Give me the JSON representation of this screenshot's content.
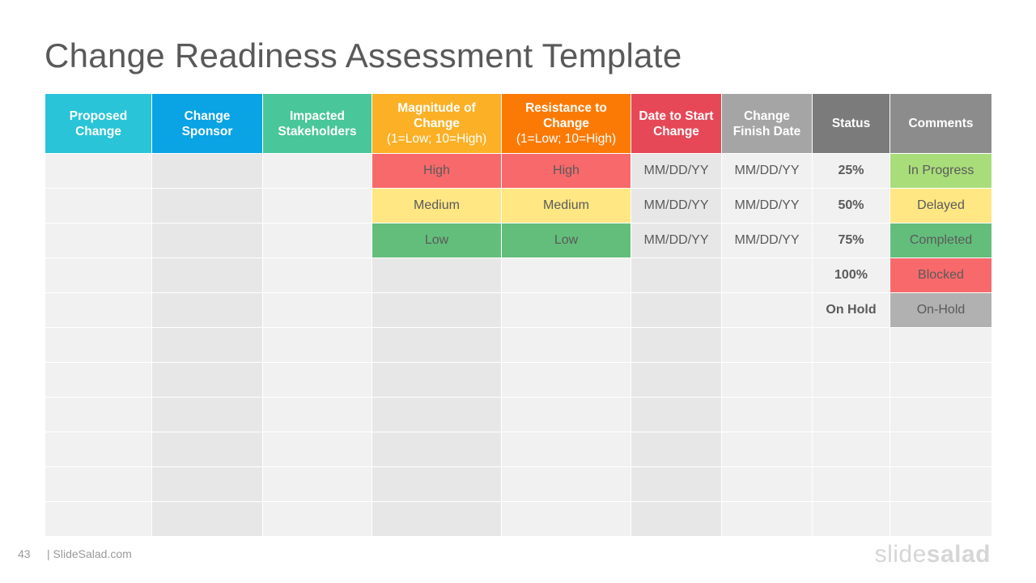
{
  "slide": {
    "title": "Change Readiness Assessment Template",
    "page_number": "43",
    "site": "| SlideSalad.com",
    "logo": {
      "part1": "slide",
      "part2": "salad"
    }
  },
  "colors": {
    "header": [
      "#29c4d8",
      "#0aa3e4",
      "#49c69a",
      "#fbb025",
      "#fb7a06",
      "#e64857",
      "#a5a5a5",
      "#7b7b7b",
      "#8c8c8c"
    ],
    "high": "#f8696b",
    "medium": "#ffe784",
    "low": "#63be7b",
    "in_progress": "#a9dd7a",
    "delayed": "#ffe784",
    "completed": "#63be7b",
    "blocked": "#f8696b",
    "on_hold": "#b1b1b1"
  },
  "headers": [
    [
      "Proposed",
      "Change"
    ],
    [
      "Change",
      "Sponsor"
    ],
    [
      "Impacted",
      "Stakeholders"
    ],
    [
      "Magnitude of",
      "Change",
      "(1=Low; 10=High)"
    ],
    [
      "Resistance to",
      "Change",
      "(1=Low; 10=High)"
    ],
    [
      "Date to Start",
      "Change"
    ],
    [
      "Change",
      "Finish Date"
    ],
    [
      "Status"
    ],
    [
      "Comments"
    ]
  ],
  "rows": [
    {
      "magnitude": "High",
      "resistance": "High",
      "start": "MM/DD/YY",
      "finish": "MM/DD/YY",
      "status": "25%",
      "comment": "In Progress"
    },
    {
      "magnitude": "Medium",
      "resistance": "Medium",
      "start": "MM/DD/YY",
      "finish": "MM/DD/YY",
      "status": "50%",
      "comment": "Delayed"
    },
    {
      "magnitude": "Low",
      "resistance": "Low",
      "start": "MM/DD/YY",
      "finish": "MM/DD/YY",
      "status": "75%",
      "comment": "Completed"
    },
    {
      "status": "100%",
      "comment": "Blocked"
    },
    {
      "status": "On Hold",
      "comment": "On-Hold"
    },
    {},
    {},
    {},
    {},
    {},
    {}
  ]
}
